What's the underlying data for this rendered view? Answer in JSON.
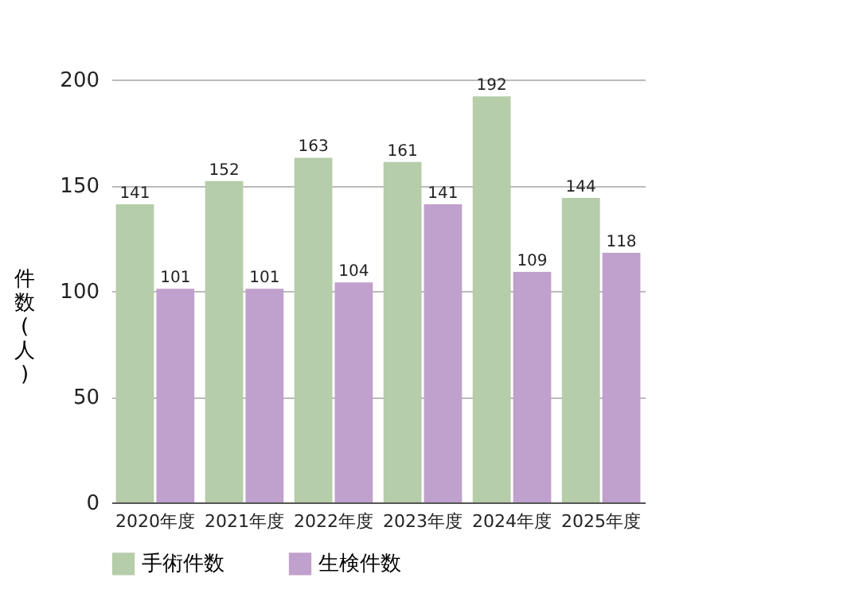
{
  "chart_data": {
    "type": "bar",
    "ylabel": "件数(人)",
    "categories": [
      "2020年度",
      "2021年度",
      "2022年度",
      "2023年度",
      "2024年度",
      "2025年度"
    ],
    "series": [
      {
        "name": "手術件数",
        "color": "#b5cda9",
        "values": [
          141,
          152,
          163,
          161,
          192,
          144
        ]
      },
      {
        "name": "生検件数",
        "color": "#c0a0cc",
        "values": [
          101,
          101,
          104,
          141,
          109,
          118
        ]
      }
    ],
    "ylim": [
      0,
      200
    ],
    "yticks": [
      0,
      50,
      100,
      150,
      200
    ],
    "grid": "y",
    "legend": "bottom",
    "data_labels": true
  }
}
